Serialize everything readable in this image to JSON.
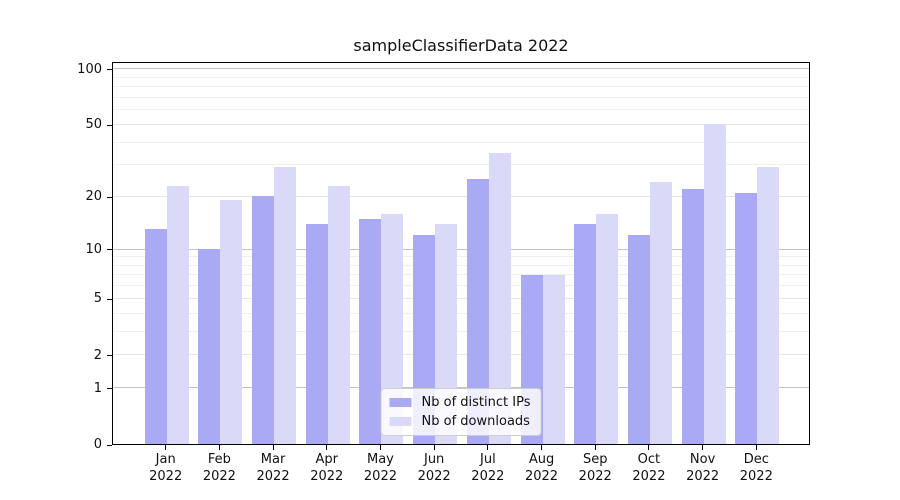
{
  "chart_data": {
    "type": "bar",
    "title": "sampleClassifierData 2022",
    "categories": [
      "Jan",
      "Feb",
      "Mar",
      "Apr",
      "May",
      "Jun",
      "Jul",
      "Aug",
      "Sep",
      "Oct",
      "Nov",
      "Dec"
    ],
    "year": "2022",
    "series": [
      {
        "name": "Nb of distinct IPs",
        "color": "#a9a9f4",
        "values": [
          13,
          10,
          20,
          14,
          15,
          12,
          25,
          7,
          14,
          12,
          22,
          21
        ]
      },
      {
        "name": "Nb of downloads",
        "color": "#dadaf8",
        "values": [
          23,
          19,
          29,
          23,
          16,
          14,
          35,
          7,
          16,
          24,
          50,
          29
        ]
      }
    ],
    "yscale": "log1p",
    "ylim": [
      0,
      110
    ],
    "yticks": [
      0,
      1,
      2,
      5,
      10,
      20,
      50,
      100
    ],
    "grid_major_lines": [
      1,
      10,
      100
    ],
    "grid_mid_lines": [
      2,
      5,
      20,
      50
    ],
    "grid_minor_lines": [
      3,
      4,
      6,
      7,
      8,
      9,
      30,
      40,
      60,
      70,
      80,
      90
    ],
    "legend_position": "lower center",
    "grid": true
  },
  "colors": {
    "grid_major": "#c3c3c3",
    "grid_mid": "#e6e6e6",
    "grid_minor": "#efefef",
    "spine": "#000000",
    "text": "#111111"
  }
}
